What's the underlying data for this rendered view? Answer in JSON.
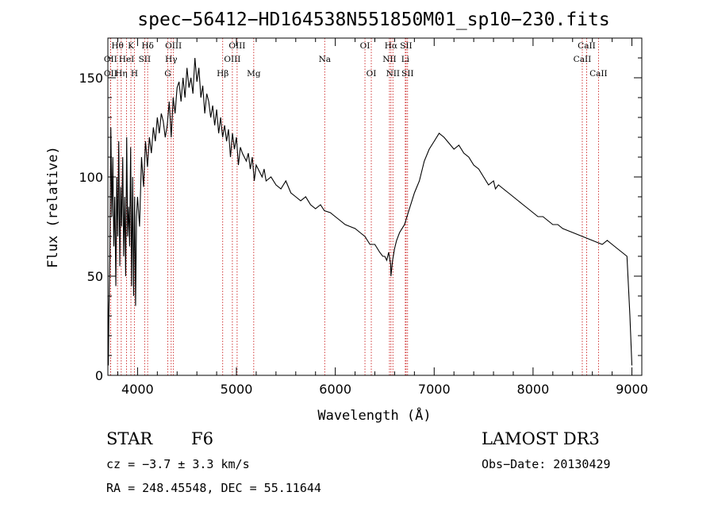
{
  "chart_data": {
    "type": "line",
    "title": "spec−56412−HD164538N551850M01_sp10−230.fits",
    "xlabel": "Wavelength (Å)",
    "ylabel": "Flux (relative)",
    "xlim": [
      3700,
      9100
    ],
    "ylim": [
      0,
      170
    ],
    "xticks": [
      4000,
      5000,
      6000,
      7000,
      8000,
      9000
    ],
    "yticks": [
      0,
      50,
      100,
      150
    ],
    "grid": false,
    "series": [
      {
        "x": [
          3700,
          3705,
          3710,
          3720,
          3730,
          3740,
          3750,
          3760,
          3770,
          3780,
          3790,
          3800,
          3810,
          3820,
          3830,
          3840,
          3850,
          3860,
          3870,
          3880,
          3890,
          3900,
          3910,
          3920,
          3930,
          3940,
          3950,
          3960,
          3970,
          3980,
          3990,
          4000,
          4020,
          4040,
          4060,
          4080,
          4100,
          4120,
          4140,
          4160,
          4180,
          4200,
          4220,
          4240,
          4260,
          4280,
          4300,
          4320,
          4340,
          4360,
          4380,
          4400,
          4420,
          4440,
          4460,
          4480,
          4500,
          4520,
          4540,
          4560,
          4580,
          4600,
          4620,
          4640,
          4660,
          4680,
          4700,
          4720,
          4740,
          4760,
          4780,
          4800,
          4820,
          4840,
          4860,
          4880,
          4900,
          4920,
          4940,
          4960,
          4980,
          5000,
          5020,
          5040,
          5060,
          5080,
          5100,
          5120,
          5140,
          5160,
          5180,
          5200,
          5220,
          5240,
          5260,
          5280,
          5300,
          5350,
          5400,
          5450,
          5500,
          5550,
          5600,
          5650,
          5700,
          5750,
          5800,
          5850,
          5890,
          5950,
          6000,
          6050,
          6100,
          6150,
          6200,
          6250,
          6300,
          6350,
          6400,
          6450,
          6480,
          6500,
          6520,
          6540,
          6560,
          6563,
          6580,
          6600,
          6620,
          6650,
          6700,
          6750,
          6800,
          6850,
          6900,
          6950,
          7000,
          7050,
          7100,
          7150,
          7200,
          7250,
          7300,
          7350,
          7400,
          7450,
          7500,
          7550,
          7600,
          7620,
          7650,
          7700,
          7750,
          7800,
          7850,
          7900,
          7950,
          8000,
          8050,
          8100,
          8150,
          8200,
          8250,
          8300,
          8350,
          8400,
          8450,
          8500,
          8550,
          8600,
          8650,
          8700,
          8750,
          8800,
          8850,
          8900,
          8950,
          8980,
          9000
        ],
        "values": [
          40,
          5,
          30,
          60,
          125,
          80,
          110,
          65,
          90,
          45,
          100,
          70,
          118,
          55,
          95,
          75,
          110,
          60,
          90,
          50,
          120,
          70,
          85,
          65,
          115,
          45,
          100,
          40,
          90,
          35,
          80,
          90,
          75,
          110,
          95,
          118,
          105,
          120,
          112,
          125,
          118,
          130,
          122,
          132,
          128,
          120,
          126,
          138,
          120,
          140,
          132,
          145,
          148,
          138,
          150,
          140,
          155,
          145,
          150,
          142,
          160,
          148,
          155,
          140,
          146,
          132,
          142,
          138,
          130,
          136,
          126,
          134,
          122,
          130,
          120,
          126,
          118,
          124,
          110,
          122,
          114,
          120,
          106,
          115,
          112,
          110,
          108,
          112,
          104,
          110,
          98,
          106,
          104,
          102,
          100,
          104,
          98,
          100,
          96,
          94,
          98,
          92,
          90,
          88,
          90,
          86,
          84,
          86,
          83,
          82,
          80,
          78,
          76,
          75,
          74,
          72,
          70,
          66,
          66,
          62,
          60,
          60,
          58,
          62,
          56,
          50,
          58,
          64,
          68,
          72,
          76,
          84,
          92,
          98,
          108,
          114,
          118,
          122,
          120,
          117,
          114,
          116,
          112,
          110,
          106,
          104,
          100,
          96,
          98,
          94,
          96,
          94,
          92,
          90,
          88,
          86,
          84,
          82,
          80,
          80,
          78,
          76,
          76,
          74,
          73,
          72,
          71,
          70,
          69,
          68,
          67,
          66,
          68,
          66,
          64,
          62,
          60,
          30,
          5
        ]
      }
    ],
    "lines": [
      {
        "label": "Hθ",
        "x": 3797,
        "row": 0
      },
      {
        "label": "K",
        "x": 3933,
        "row": 0
      },
      {
        "label": "Hδ",
        "x": 4102,
        "row": 0
      },
      {
        "label": "OII",
        "x": 3727,
        "row": 1
      },
      {
        "label": "HeI",
        "x": 3889,
        "row": 1
      },
      {
        "label": "SII",
        "x": 4072,
        "row": 1
      },
      {
        "label": "OII",
        "x": 3727,
        "row": 2
      },
      {
        "label": "Hη",
        "x": 3835,
        "row": 2
      },
      {
        "label": "H",
        "x": 3968,
        "row": 2
      },
      {
        "label": "OIII",
        "x": 4363,
        "row": 0
      },
      {
        "label": "Hγ",
        "x": 4340,
        "row": 1
      },
      {
        "label": "G",
        "x": 4305,
        "row": 2
      },
      {
        "label": "OIII",
        "x": 5007,
        "row": 0
      },
      {
        "label": "OIII",
        "x": 4959,
        "row": 1
      },
      {
        "label": "Hβ",
        "x": 4861,
        "row": 2
      },
      {
        "label": "Mg",
        "x": 5175,
        "row": 2
      },
      {
        "label": "Na",
        "x": 5893,
        "row": 1
      },
      {
        "label": "OI",
        "x": 6300,
        "row": 0
      },
      {
        "label": "OI",
        "x": 6364,
        "row": 2
      },
      {
        "label": "Hα",
        "x": 6563,
        "row": 0
      },
      {
        "label": "SII",
        "x": 6716,
        "row": 0
      },
      {
        "label": "NII",
        "x": 6548,
        "row": 1
      },
      {
        "label": "Li",
        "x": 6708,
        "row": 1
      },
      {
        "label": "NII",
        "x": 6583,
        "row": 2
      },
      {
        "label": "SII",
        "x": 6731,
        "row": 2
      },
      {
        "label": "CaII",
        "x": 8542,
        "row": 0
      },
      {
        "label": "CaII",
        "x": 8498,
        "row": 1
      },
      {
        "label": "CaII",
        "x": 8662,
        "row": 2
      }
    ]
  },
  "info": {
    "class": "STAR",
    "subclass": "F6",
    "survey": "LAMOST DR3",
    "cz": "cz = −3.7 ± 3.3 km/s",
    "obs_date": "Obs−Date: 20130429",
    "coords": "RA = 248.45548, DEC =  55.11644"
  },
  "colors": {
    "ink": "#000000",
    "line_marker": "#cc2222",
    "background": "#ffffff"
  }
}
